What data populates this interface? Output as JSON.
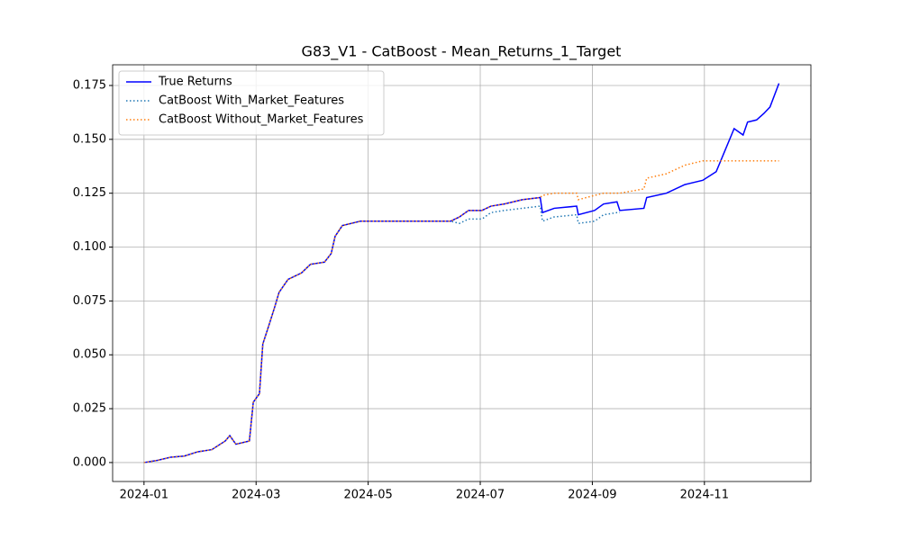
{
  "chart_data": {
    "type": "line",
    "title": "G83_V1 - CatBoost - Mean_Returns_1_Target",
    "x": [
      0,
      0.24,
      0.48,
      0.72,
      0.96,
      1.21,
      1.45,
      1.53,
      1.64,
      1.88,
      1.95,
      2.06,
      2.12,
      2.22,
      2.33,
      2.41,
      2.57,
      2.81,
      2.97,
      3.22,
      3.34,
      3.41,
      3.54,
      3.86,
      5.47,
      5.63,
      5.79,
      6.03,
      6.19,
      6.43,
      6.75,
      7.07,
      7.11,
      7.32,
      7.72,
      7.75,
      8.04,
      8.2,
      8.44,
      8.49,
      8.92,
      8.97,
      9.32,
      9.65,
      9.97,
      10.21,
      10.37,
      10.53,
      10.69,
      10.77,
      10.93,
      11.06,
      11.17,
      11.33
    ],
    "series": [
      {
        "name": "True Returns",
        "color": "#0000ff",
        "style": "solid",
        "values": [
          0,
          0.001,
          0.0025,
          0.003,
          0.005,
          0.006,
          0.01,
          0.0125,
          0.0085,
          0.01,
          0.028,
          0.032,
          0.055,
          0.063,
          0.072,
          0.079,
          0.085,
          0.088,
          0.092,
          0.093,
          0.097,
          0.105,
          0.11,
          0.112,
          0.112,
          0.114,
          0.117,
          0.117,
          0.119,
          0.12,
          0.122,
          0.123,
          0.116,
          0.118,
          0.119,
          0.115,
          0.117,
          0.12,
          0.121,
          0.117,
          0.118,
          0.123,
          0.125,
          0.129,
          0.131,
          0.135,
          0.145,
          0.155,
          0.152,
          0.158,
          0.159,
          0.162,
          0.165,
          0.176
        ]
      },
      {
        "name": "CatBoost With_Market_Features",
        "color": "#1f77b4",
        "style": "dotted",
        "values": [
          0,
          0.001,
          0.0025,
          0.003,
          0.005,
          0.006,
          0.01,
          0.0125,
          0.0085,
          0.01,
          0.028,
          0.032,
          0.055,
          0.063,
          0.072,
          0.079,
          0.085,
          0.088,
          0.092,
          0.093,
          0.097,
          0.105,
          0.11,
          0.112,
          0.112,
          0.111,
          0.113,
          0.113,
          0.116,
          0.117,
          0.118,
          0.119,
          0.112,
          0.114,
          0.115,
          0.111,
          0.112,
          0.115,
          0.116,
          0.116,
          null,
          null,
          null,
          null,
          null,
          null,
          null,
          null,
          null,
          null,
          null,
          null,
          null,
          null
        ]
      },
      {
        "name": "CatBoost Without_Market_Features",
        "color": "#ff7f0e",
        "style": "dotted",
        "values": [
          0,
          0.001,
          0.0025,
          0.003,
          0.005,
          0.006,
          0.01,
          0.0125,
          0.0085,
          0.01,
          0.028,
          0.032,
          0.055,
          0.063,
          0.072,
          0.079,
          0.085,
          0.088,
          0.092,
          0.093,
          0.097,
          0.105,
          0.11,
          0.112,
          0.112,
          0.114,
          0.117,
          0.117,
          0.119,
          0.12,
          0.122,
          0.123,
          0.124,
          0.125,
          0.125,
          0.122,
          0.124,
          0.125,
          0.125,
          0.125,
          0.127,
          0.132,
          0.134,
          0.138,
          0.14,
          0.14,
          0.14,
          0.14,
          0.14,
          0.14,
          0.14,
          0.14,
          0.14,
          0.14
        ]
      }
    ],
    "xlim": [
      -0.56,
      11.9
    ],
    "xticks": [
      {
        "value": 0,
        "label": "2024-01"
      },
      {
        "value": 2,
        "label": "2024-03"
      },
      {
        "value": 4,
        "label": "2024-05"
      },
      {
        "value": 6,
        "label": "2024-07"
      },
      {
        "value": 8,
        "label": "2024-09"
      },
      {
        "value": 10,
        "label": "2024-11"
      }
    ],
    "ylim": [
      -0.0088,
      0.1846
    ],
    "yticks": [
      {
        "value": 0,
        "label": "0.000"
      },
      {
        "value": 0.025,
        "label": "0.025"
      },
      {
        "value": 0.05,
        "label": "0.050"
      },
      {
        "value": 0.075,
        "label": "0.075"
      },
      {
        "value": 0.1,
        "label": "0.100"
      },
      {
        "value": 0.125,
        "label": "0.125"
      },
      {
        "value": 0.15,
        "label": "0.150"
      },
      {
        "value": 0.175,
        "label": "0.175"
      }
    ],
    "grid": true,
    "legend": "upper-left"
  }
}
